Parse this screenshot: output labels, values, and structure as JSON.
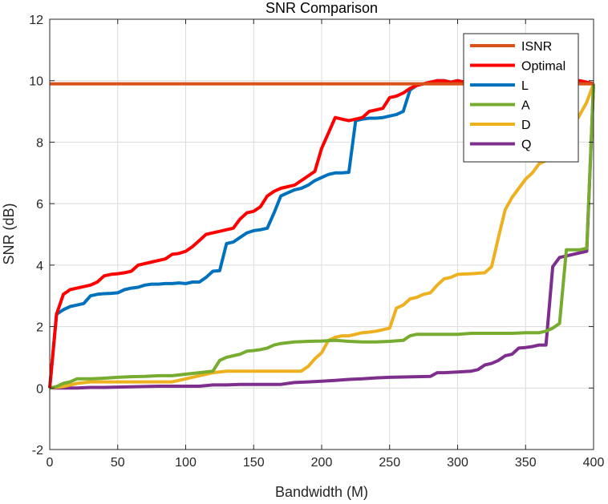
{
  "chart_data": {
    "type": "line",
    "title": "SNR Comparison",
    "xlabel": "Bandwidth (M)",
    "ylabel": "SNR (dB)",
    "xlim": [
      0,
      400
    ],
    "ylim": [
      -2,
      12
    ],
    "xticks": [
      0,
      50,
      100,
      150,
      200,
      250,
      300,
      350,
      400
    ],
    "yticks": [
      -2,
      0,
      2,
      4,
      6,
      8,
      10,
      12
    ],
    "grid": true,
    "legend_position": "top-right",
    "series": [
      {
        "name": "ISNR",
        "color": "#D95319",
        "x": [
          0,
          400
        ],
        "y": [
          9.9,
          9.9
        ]
      },
      {
        "name": "Optimal",
        "color": "#FF0000",
        "x": [
          0,
          5,
          10,
          15,
          20,
          25,
          30,
          35,
          40,
          45,
          50,
          55,
          60,
          65,
          70,
          75,
          80,
          85,
          90,
          95,
          100,
          105,
          110,
          115,
          120,
          125,
          130,
          135,
          140,
          145,
          150,
          155,
          160,
          165,
          170,
          175,
          180,
          185,
          190,
          195,
          200,
          205,
          210,
          215,
          220,
          225,
          230,
          235,
          240,
          245,
          250,
          255,
          260,
          265,
          270,
          275,
          280,
          285,
          290,
          295,
          300,
          305,
          310,
          320,
          330,
          340,
          350,
          360,
          370,
          380,
          390,
          400
        ],
        "y": [
          0,
          2.4,
          3.05,
          3.2,
          3.25,
          3.3,
          3.35,
          3.45,
          3.65,
          3.7,
          3.72,
          3.75,
          3.8,
          4.0,
          4.05,
          4.1,
          4.15,
          4.2,
          4.35,
          4.38,
          4.45,
          4.6,
          4.8,
          5.0,
          5.05,
          5.1,
          5.15,
          5.2,
          5.5,
          5.7,
          5.75,
          5.9,
          6.25,
          6.4,
          6.5,
          6.55,
          6.6,
          6.75,
          6.9,
          7.05,
          7.8,
          8.3,
          8.8,
          8.75,
          8.7,
          8.75,
          8.8,
          9.0,
          9.05,
          9.1,
          9.45,
          9.5,
          9.6,
          9.75,
          9.85,
          9.9,
          9.95,
          10.0,
          10.0,
          9.95,
          10.0,
          9.95,
          9.95,
          9.95,
          9.95,
          9.95,
          9.95,
          9.95,
          9.95,
          9.95,
          10.0,
          9.9
        ]
      },
      {
        "name": "L",
        "color": "#0072BD",
        "x": [
          0,
          5,
          10,
          15,
          20,
          25,
          30,
          35,
          40,
          45,
          50,
          55,
          60,
          65,
          70,
          75,
          80,
          85,
          90,
          95,
          100,
          105,
          110,
          115,
          120,
          125,
          130,
          135,
          140,
          145,
          150,
          155,
          160,
          165,
          170,
          175,
          180,
          185,
          190,
          195,
          200,
          205,
          210,
          215,
          220,
          225,
          230,
          235,
          240,
          245,
          250,
          255,
          260,
          265,
          270,
          275,
          280,
          285,
          290,
          295,
          300,
          305,
          310,
          320,
          330,
          340,
          350,
          360,
          370,
          380,
          390,
          400
        ],
        "y": [
          0,
          2.4,
          2.55,
          2.65,
          2.7,
          2.75,
          3.0,
          3.05,
          3.07,
          3.08,
          3.1,
          3.2,
          3.25,
          3.28,
          3.35,
          3.38,
          3.38,
          3.4,
          3.4,
          3.42,
          3.4,
          3.45,
          3.45,
          3.6,
          3.8,
          3.82,
          4.7,
          4.75,
          4.9,
          5.05,
          5.12,
          5.15,
          5.2,
          5.7,
          6.25,
          6.35,
          6.45,
          6.5,
          6.6,
          6.75,
          6.85,
          6.95,
          7.0,
          7.0,
          7.02,
          8.7,
          8.75,
          8.78,
          8.78,
          8.8,
          8.85,
          8.9,
          9.0,
          9.7,
          9.85,
          9.9,
          9.95,
          10.0,
          10.0,
          9.95,
          10.0,
          9.95,
          9.95,
          9.95,
          9.95,
          9.95,
          9.95,
          9.95,
          9.95,
          9.95,
          9.95,
          9.9
        ]
      },
      {
        "name": "A",
        "color": "#77AC30",
        "x": [
          0,
          5,
          10,
          15,
          20,
          30,
          40,
          50,
          60,
          70,
          80,
          90,
          100,
          110,
          120,
          125,
          130,
          135,
          140,
          145,
          150,
          155,
          160,
          165,
          170,
          180,
          190,
          200,
          210,
          220,
          230,
          240,
          250,
          260,
          265,
          270,
          280,
          290,
          300,
          310,
          320,
          330,
          340,
          350,
          360,
          365,
          370,
          375,
          380,
          385,
          390,
          395,
          400
        ],
        "y": [
          0,
          0.05,
          0.15,
          0.2,
          0.3,
          0.3,
          0.32,
          0.35,
          0.37,
          0.38,
          0.4,
          0.4,
          0.45,
          0.5,
          0.55,
          0.9,
          1.0,
          1.05,
          1.1,
          1.2,
          1.22,
          1.25,
          1.3,
          1.4,
          1.45,
          1.5,
          1.52,
          1.53,
          1.55,
          1.52,
          1.5,
          1.5,
          1.52,
          1.55,
          1.7,
          1.75,
          1.75,
          1.75,
          1.75,
          1.78,
          1.78,
          1.78,
          1.78,
          1.8,
          1.8,
          1.85,
          1.95,
          2.1,
          4.5,
          4.5,
          4.5,
          4.55,
          9.9
        ]
      },
      {
        "name": "D",
        "color": "#EDB120",
        "x": [
          0,
          10,
          20,
          30,
          40,
          50,
          60,
          70,
          80,
          90,
          100,
          110,
          115,
          120,
          130,
          140,
          150,
          160,
          170,
          180,
          185,
          190,
          195,
          200,
          205,
          210,
          215,
          220,
          225,
          230,
          235,
          240,
          245,
          250,
          255,
          260,
          265,
          270,
          275,
          280,
          285,
          290,
          295,
          300,
          310,
          320,
          325,
          330,
          335,
          340,
          345,
          350,
          355,
          360,
          365,
          370,
          375,
          380,
          385,
          390,
          395,
          400
        ],
        "y": [
          0,
          0.05,
          0.15,
          0.2,
          0.2,
          0.2,
          0.2,
          0.2,
          0.2,
          0.2,
          0.3,
          0.4,
          0.45,
          0.5,
          0.55,
          0.55,
          0.55,
          0.55,
          0.55,
          0.55,
          0.55,
          0.7,
          0.95,
          1.15,
          1.55,
          1.65,
          1.7,
          1.7,
          1.75,
          1.8,
          1.82,
          1.85,
          1.9,
          1.95,
          2.6,
          2.7,
          2.9,
          2.95,
          3.05,
          3.1,
          3.35,
          3.55,
          3.6,
          3.7,
          3.72,
          3.75,
          3.95,
          4.9,
          5.8,
          6.2,
          6.5,
          6.8,
          7.0,
          7.3,
          7.4,
          7.5,
          7.7,
          8.0,
          8.5,
          8.9,
          9.3,
          9.9
        ]
      },
      {
        "name": "Q",
        "color": "#7E2F8E",
        "x": [
          0,
          10,
          20,
          30,
          40,
          50,
          60,
          70,
          80,
          90,
          100,
          110,
          120,
          130,
          140,
          150,
          160,
          170,
          180,
          190,
          200,
          210,
          220,
          230,
          240,
          250,
          260,
          270,
          280,
          285,
          290,
          300,
          310,
          315,
          320,
          325,
          330,
          335,
          340,
          345,
          350,
          355,
          360,
          365,
          370,
          375,
          380,
          385,
          390,
          395,
          400
        ],
        "y": [
          0,
          0,
          0,
          0.02,
          0.02,
          0.03,
          0.04,
          0.05,
          0.06,
          0.06,
          0.06,
          0.06,
          0.1,
          0.1,
          0.12,
          0.12,
          0.12,
          0.12,
          0.18,
          0.2,
          0.22,
          0.25,
          0.28,
          0.3,
          0.33,
          0.35,
          0.36,
          0.37,
          0.38,
          0.5,
          0.5,
          0.52,
          0.55,
          0.6,
          0.75,
          0.8,
          0.9,
          1.05,
          1.1,
          1.3,
          1.32,
          1.35,
          1.4,
          1.4,
          3.95,
          4.25,
          4.3,
          4.35,
          4.4,
          4.45,
          9.9
        ]
      }
    ]
  }
}
